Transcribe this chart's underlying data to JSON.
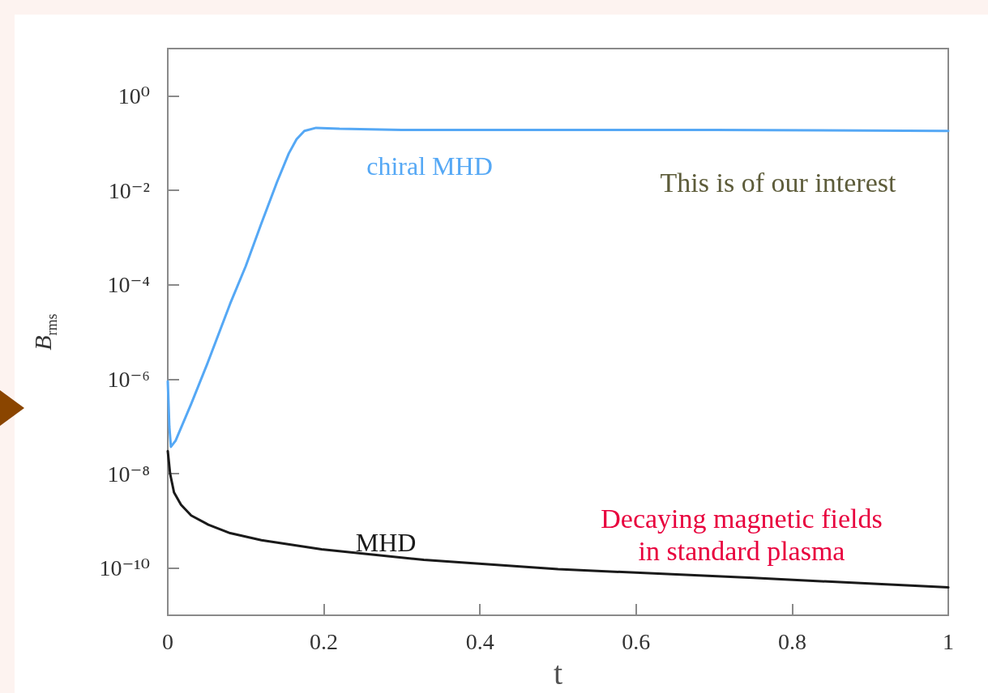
{
  "chart_data": {
    "type": "line",
    "xlabel": "t",
    "ylabel": "B$_{rms}$",
    "xlim": [
      0,
      1
    ],
    "xticks": [
      0,
      0.2,
      0.4,
      0.6,
      0.8,
      1
    ],
    "ylim": [
      1e-11,
      10
    ],
    "log": "y",
    "yticks": [
      {
        "value": 1,
        "label": "10⁰"
      },
      {
        "value": 0.01,
        "label": "10⁻²"
      },
      {
        "value": 0.0001,
        "label": "10⁻⁴"
      },
      {
        "value": 1e-06,
        "label": "10⁻⁶"
      },
      {
        "value": 1e-08,
        "label": "10⁻⁸"
      },
      {
        "value": 1e-10,
        "label": "10⁻¹⁰"
      }
    ],
    "grid": false,
    "legend": false,
    "marker": "none",
    "line_style": "solid",
    "series": [
      {
        "name": "chiral MHD",
        "color": "#55a8f5",
        "x": [
          0,
          0.002,
          0.004,
          0.01,
          0.03,
          0.05,
          0.08,
          0.1,
          0.12,
          0.14,
          0.155,
          0.165,
          0.175,
          0.19,
          0.22,
          0.3,
          0.5,
          0.7,
          1
        ],
        "values": [
          9e-07,
          1e-07,
          3.7e-08,
          5e-08,
          3e-07,
          2e-06,
          4e-05,
          0.00025,
          0.002,
          0.015,
          0.06,
          0.12,
          0.18,
          0.21,
          0.2,
          0.19,
          0.19,
          0.19,
          0.18
        ]
      },
      {
        "name": "MHD",
        "color": "#1a1a1a",
        "x": [
          0,
          0.003,
          0.008,
          0.017,
          0.03,
          0.052,
          0.08,
          0.12,
          0.197,
          0.328,
          0.5,
          0.75,
          1
        ],
        "values": [
          3e-08,
          1e-08,
          4e-09,
          2.2e-09,
          1.3e-09,
          8.3e-10,
          5.5e-10,
          3.9e-10,
          2.5e-10,
          1.5e-10,
          9.5e-11,
          6.2e-11,
          3.9e-11
        ]
      }
    ],
    "annotations": [
      "This is of our interest",
      "Decaying magnetic fields\nin standard plasma"
    ]
  }
}
